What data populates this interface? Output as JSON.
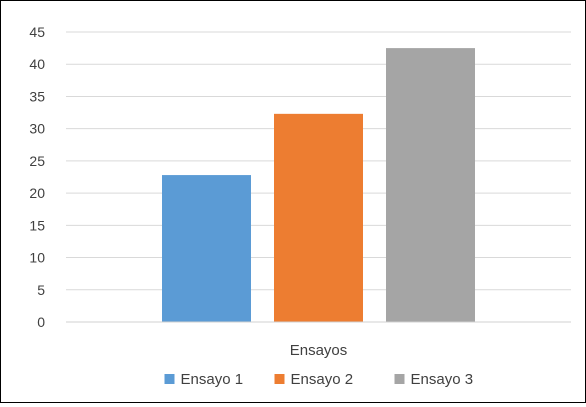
{
  "chart_data": {
    "type": "bar",
    "categories": [
      "Ensayos"
    ],
    "series": [
      {
        "name": "Ensayo 1",
        "values": [
          22.8
        ],
        "color": "#5b9bd5"
      },
      {
        "name": "Ensayo 2",
        "values": [
          32.3
        ],
        "color": "#ed7d31"
      },
      {
        "name": "Ensayo 3",
        "values": [
          42.5
        ],
        "color": "#a5a5a5"
      }
    ],
    "title": "",
    "xlabel": "",
    "ylabel": "",
    "ylim": [
      0,
      45
    ],
    "yticks": [
      0,
      5,
      10,
      15,
      20,
      25,
      30,
      35,
      40,
      45
    ],
    "grid": true,
    "legend": "bottom"
  }
}
